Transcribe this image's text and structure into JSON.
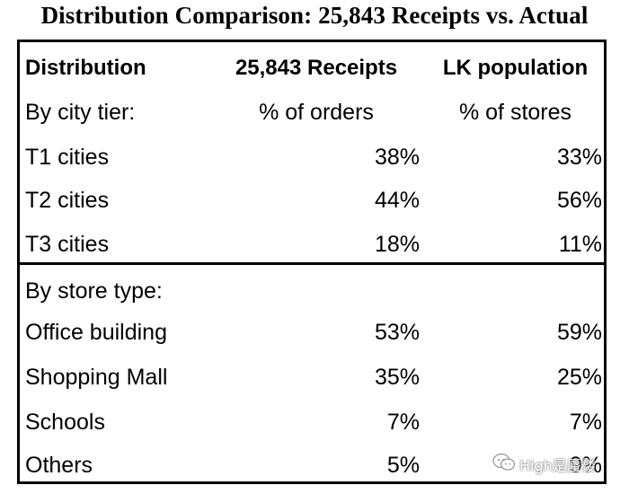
{
  "title": "Distribution Comparison: 25,843 Receipts vs. Actual",
  "table": {
    "headers": [
      "Distribution",
      "25,843 Receipts",
      "LK population"
    ],
    "sections": [
      {
        "label": "By city tier:",
        "col2_label": "% of orders",
        "col3_label": "% of stores",
        "rows": [
          {
            "name": "T1 cities",
            "receipts": "38%",
            "population": "33%"
          },
          {
            "name": "T2 cities",
            "receipts": "44%",
            "population": "56%"
          },
          {
            "name": "T3 cities",
            "receipts": "18%",
            "population": "11%"
          }
        ]
      },
      {
        "label": "By store type:",
        "rows": [
          {
            "name": "Office building",
            "receipts": "53%",
            "population": "59%"
          },
          {
            "name": "Shopping Mall",
            "receipts": "35%",
            "population": "25%"
          },
          {
            "name": "Schools",
            "receipts": "7%",
            "population": "7%"
          },
          {
            "name": "Others",
            "receipts": "5%",
            "population": "9%"
          }
        ]
      }
    ]
  },
  "watermark": {
    "text": "High是蜃楼",
    "icon": "wechat-icon"
  }
}
